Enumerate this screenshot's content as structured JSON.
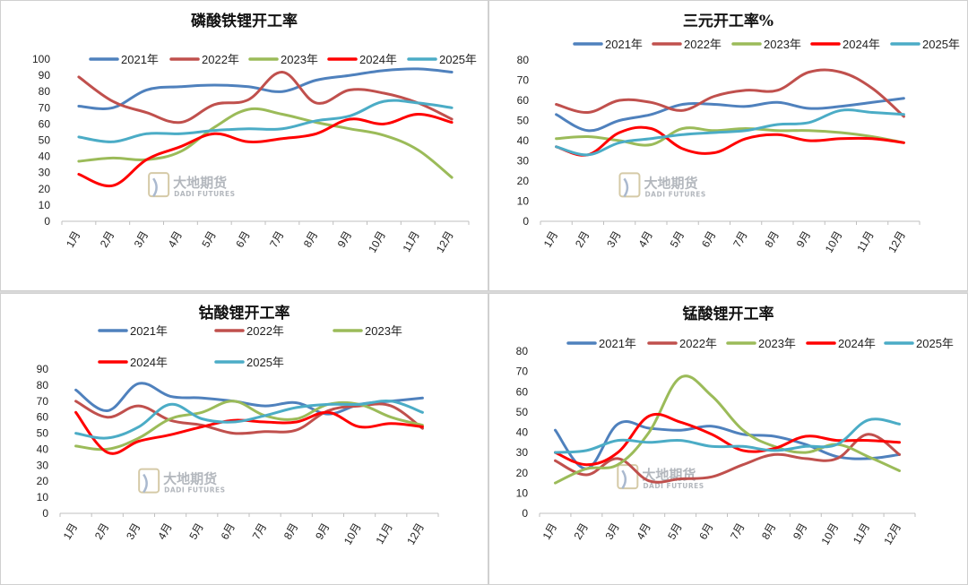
{
  "watermark": {
    "cn": "大地期货",
    "en": "DADI FUTURES"
  },
  "chart_data": [
    {
      "type": "line",
      "title": "磷酸铁锂开工率",
      "categories": [
        "1月",
        "2月",
        "3月",
        "4月",
        "5月",
        "6月",
        "7月",
        "8月",
        "9月",
        "10月",
        "11月",
        "12月"
      ],
      "ylim": [
        0,
        100
      ],
      "ystep": 10,
      "series": [
        {
          "name": "2021年",
          "color": "#4f81bd",
          "values": [
            71,
            70,
            81,
            83,
            84,
            83,
            80,
            87,
            90,
            93,
            94,
            92
          ]
        },
        {
          "name": "2022年",
          "color": "#c0504d",
          "values": [
            89,
            74,
            67,
            61,
            72,
            75,
            92,
            73,
            81,
            79,
            73,
            63
          ]
        },
        {
          "name": "2023年",
          "color": "#9bbb59",
          "values": [
            37,
            39,
            38,
            43,
            58,
            69,
            66,
            61,
            57,
            53,
            44,
            27
          ]
        },
        {
          "name": "2024年",
          "color": "#ff0000",
          "values": [
            29,
            22,
            38,
            46,
            54,
            49,
            51,
            54,
            63,
            60,
            66,
            61
          ]
        },
        {
          "name": "2025年",
          "color": "#4bacc6",
          "values": [
            52,
            49,
            54,
            54,
            56,
            57,
            57,
            62,
            65,
            74,
            73,
            70
          ]
        }
      ]
    },
    {
      "type": "line",
      "title": "三元开工率%",
      "categories": [
        "1月",
        "2月",
        "3月",
        "4月",
        "5月",
        "6月",
        "7月",
        "8月",
        "9月",
        "10月",
        "11月",
        "12月"
      ],
      "ylim": [
        0,
        80
      ],
      "ystep": 10,
      "series": [
        {
          "name": "2021年",
          "color": "#4f81bd",
          "values": [
            53,
            45,
            50,
            53,
            58,
            58,
            57,
            59,
            56,
            57,
            59,
            61
          ]
        },
        {
          "name": "2022年",
          "color": "#c0504d",
          "values": [
            58,
            54,
            60,
            59,
            55,
            62,
            65,
            65,
            74,
            74,
            66,
            52
          ]
        },
        {
          "name": "2023年",
          "color": "#9bbb59",
          "values": [
            41,
            42,
            40,
            38,
            46,
            45,
            46,
            45,
            45,
            44,
            42,
            39
          ]
        },
        {
          "name": "2024年",
          "color": "#ff0000",
          "values": [
            37,
            33,
            44,
            46,
            36,
            34,
            41,
            43,
            40,
            41,
            41,
            39
          ]
        },
        {
          "name": "2025年",
          "color": "#4bacc6",
          "values": [
            37,
            33,
            39,
            41,
            43,
            44,
            45,
            48,
            49,
            55,
            54,
            53
          ]
        }
      ]
    },
    {
      "type": "line",
      "title": "钴酸锂开工率",
      "categories": [
        "1月",
        "2月",
        "3月",
        "4月",
        "5月",
        "6月",
        "7月",
        "8月",
        "9月",
        "10月",
        "11月",
        "12月"
      ],
      "ylim": [
        0,
        90
      ],
      "ystep": 10,
      "series": [
        {
          "name": "2021年",
          "color": "#4f81bd",
          "values": [
            77,
            64,
            81,
            73,
            72,
            70,
            67,
            69,
            62,
            68,
            70,
            72
          ]
        },
        {
          "name": "2022年",
          "color": "#c0504d",
          "values": [
            70,
            60,
            67,
            58,
            55,
            50,
            51,
            52,
            64,
            67,
            67,
            53
          ]
        },
        {
          "name": "2023年",
          "color": "#9bbb59",
          "values": [
            42,
            40,
            47,
            59,
            63,
            70,
            61,
            59,
            68,
            68,
            60,
            55
          ]
        },
        {
          "name": "2024年",
          "color": "#ff0000",
          "values": [
            63,
            38,
            45,
            49,
            54,
            58,
            57,
            57,
            63,
            54,
            56,
            54
          ]
        },
        {
          "name": "2025年",
          "color": "#4bacc6",
          "values": [
            50,
            47,
            54,
            68,
            59,
            57,
            61,
            66,
            68,
            68,
            70,
            63
          ]
        }
      ]
    },
    {
      "type": "line",
      "title": "锰酸锂开工率",
      "categories": [
        "1月",
        "2月",
        "3月",
        "4月",
        "5月",
        "6月",
        "7月",
        "8月",
        "9月",
        "10月",
        "11月",
        "12月"
      ],
      "ylim": [
        0,
        80
      ],
      "ystep": 10,
      "series": [
        {
          "name": "2021年",
          "color": "#4f81bd",
          "values": [
            41,
            22,
            44,
            42,
            41,
            43,
            39,
            38,
            34,
            28,
            27,
            29
          ]
        },
        {
          "name": "2022年",
          "color": "#c0504d",
          "values": [
            26,
            19,
            27,
            16,
            17,
            18,
            24,
            29,
            27,
            27,
            39,
            29
          ]
        },
        {
          "name": "2023年",
          "color": "#9bbb59",
          "values": [
            15,
            22,
            24,
            40,
            67,
            58,
            41,
            33,
            30,
            34,
            28,
            21
          ]
        },
        {
          "name": "2024年",
          "color": "#ff0000",
          "values": [
            30,
            24,
            30,
            48,
            45,
            39,
            31,
            32,
            38,
            36,
            36,
            35
          ]
        },
        {
          "name": "2025年",
          "color": "#4bacc6",
          "values": [
            30,
            31,
            36,
            35,
            36,
            33,
            33,
            31,
            33,
            34,
            46,
            44
          ]
        }
      ]
    }
  ]
}
